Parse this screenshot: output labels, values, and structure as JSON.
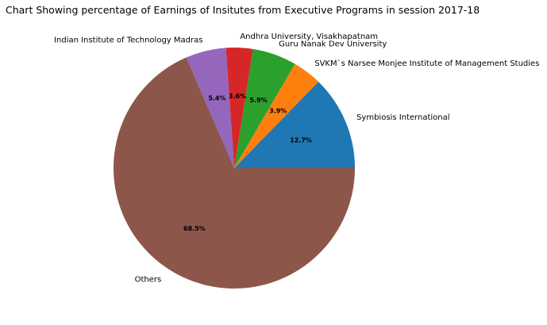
{
  "chart_data": {
    "type": "pie",
    "title": "Chart Showing percentage of Earnings of Insitutes from Executive Programs in session 2017-18",
    "slices": [
      {
        "label": "Symbiosis International",
        "value": 12.7,
        "pct_label": "12.7%",
        "color": "#1f77b4"
      },
      {
        "label": "SVKM`s Narsee Monjee Institute of Management Studies",
        "value": 3.9,
        "pct_label": "3.9%",
        "color": "#ff7f0e"
      },
      {
        "label": "Guru Nanak Dev University",
        "value": 5.9,
        "pct_label": "5.9%",
        "color": "#2ca02c"
      },
      {
        "label": "Andhra University, Visakhapatnam",
        "value": 3.6,
        "pct_label": "3.6%",
        "color": "#d62728"
      },
      {
        "label": "Indian Institute of Technology Madras",
        "value": 5.4,
        "pct_label": "5.4%",
        "color": "#9467bd"
      },
      {
        "label": "Others",
        "value": 68.5,
        "pct_label": "68.5%",
        "color": "#8c564b"
      }
    ],
    "start_angle_deg": 0,
    "direction": "counterclockwise"
  }
}
